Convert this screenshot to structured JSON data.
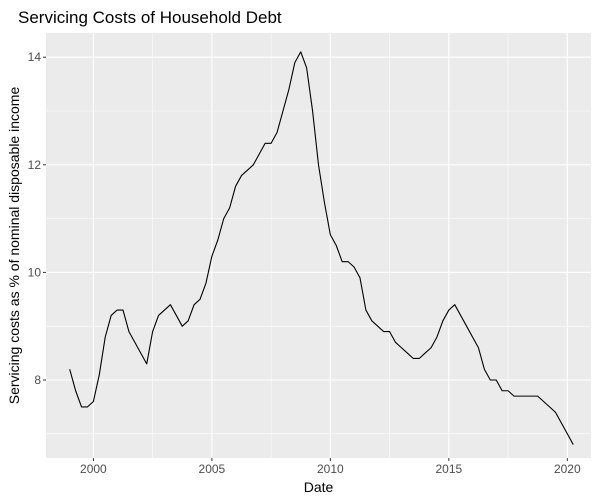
{
  "chart_data": {
    "type": "line",
    "title": "Servicing Costs of Household Debt",
    "xlabel": "Date",
    "ylabel": "Servicing costs as % of nominal disposable income",
    "xlim": [
      1998.0,
      2021.0
    ],
    "ylim": [
      6.55,
      14.45
    ],
    "x_ticks": [
      {
        "value": 2000,
        "label": "2000"
      },
      {
        "value": 2005,
        "label": "2005"
      },
      {
        "value": 2010,
        "label": "2010"
      },
      {
        "value": 2015,
        "label": "2015"
      },
      {
        "value": 2020,
        "label": "2020"
      }
    ],
    "y_ticks": [
      {
        "value": 8,
        "label": "8"
      },
      {
        "value": 10,
        "label": "10"
      },
      {
        "value": 12,
        "label": "12"
      },
      {
        "value": 14,
        "label": "14"
      }
    ],
    "grid": true,
    "legend": "none",
    "colors": {
      "panel": "#ebebeb",
      "grid": "#ffffff",
      "line": "#000000"
    },
    "series": [
      {
        "x": [
          1999.0,
          1999.25,
          1999.5,
          1999.75,
          2000.0,
          2000.25,
          2000.5,
          2000.75,
          2001.0,
          2001.25,
          2001.5,
          2001.75,
          2002.0,
          2002.25,
          2002.5,
          2002.75,
          2003.0,
          2003.25,
          2003.5,
          2003.75,
          2004.0,
          2004.25,
          2004.5,
          2004.75,
          2005.0,
          2005.25,
          2005.5,
          2005.75,
          2006.0,
          2006.25,
          2006.5,
          2006.75,
          2007.0,
          2007.25,
          2007.5,
          2007.75,
          2008.0,
          2008.25,
          2008.5,
          2008.75,
          2009.0,
          2009.25,
          2009.5,
          2009.75,
          2010.0,
          2010.25,
          2010.5,
          2010.75,
          2011.0,
          2011.25,
          2011.5,
          2011.75,
          2012.0,
          2012.25,
          2012.5,
          2012.75,
          2013.0,
          2013.25,
          2013.5,
          2013.75,
          2014.0,
          2014.25,
          2014.5,
          2014.75,
          2015.0,
          2015.25,
          2015.5,
          2015.75,
          2016.0,
          2016.25,
          2016.5,
          2016.75,
          2017.0,
          2017.25,
          2017.5,
          2017.75,
          2018.0,
          2018.25,
          2018.5,
          2018.75,
          2019.0,
          2019.25,
          2019.5,
          2019.75,
          2020.0,
          2020.25
        ],
        "values": [
          8.2,
          7.8,
          7.5,
          7.5,
          7.6,
          8.1,
          8.8,
          9.2,
          9.3,
          9.3,
          8.9,
          8.7,
          8.5,
          8.3,
          8.9,
          9.2,
          9.3,
          9.4,
          9.2,
          9.0,
          9.1,
          9.4,
          9.5,
          9.8,
          10.3,
          10.6,
          11.0,
          11.2,
          11.6,
          11.8,
          11.9,
          12.0,
          12.2,
          12.4,
          12.4,
          12.6,
          13.0,
          13.4,
          13.9,
          14.1,
          13.8,
          13.0,
          12.0,
          11.3,
          10.7,
          10.5,
          10.2,
          10.2,
          10.1,
          9.9,
          9.3,
          9.1,
          9.0,
          8.9,
          8.9,
          8.7,
          8.6,
          8.5,
          8.4,
          8.4,
          8.5,
          8.6,
          8.8,
          9.1,
          9.3,
          9.4,
          9.2,
          9.0,
          8.8,
          8.6,
          8.2,
          8.0,
          8.0,
          7.8,
          7.8,
          7.7,
          7.7,
          7.7,
          7.7,
          7.7,
          7.6,
          7.5,
          7.4,
          7.2,
          7.0,
          6.8
        ]
      }
    ]
  }
}
